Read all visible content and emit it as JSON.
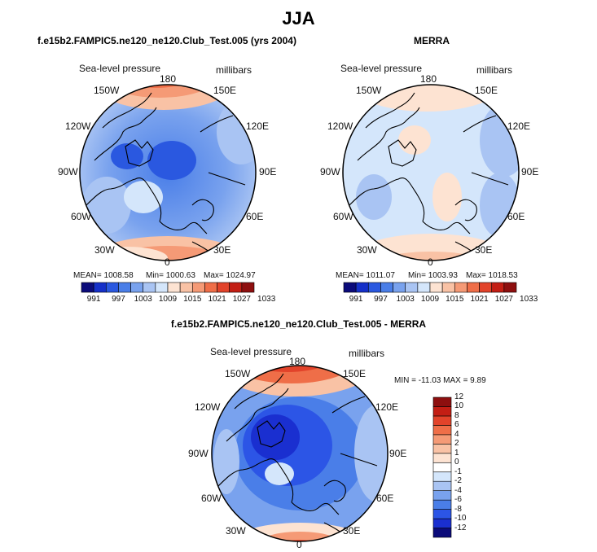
{
  "title": "JJA",
  "panels": [
    {
      "id": "model",
      "title": "f.e15b2.FAMPIC5.ne120_ne120.Club_Test.005 (yrs 2004)",
      "variable": "Sea-level pressure",
      "units": "millibars",
      "stats": {
        "mean": "MEAN= 1008.58",
        "min": "Min= 1000.63",
        "max": "Max= 1024.97"
      }
    },
    {
      "id": "obs",
      "title": "MERRA",
      "variable": "Sea-level pressure",
      "units": "millibars",
      "stats": {
        "mean": "MEAN= 1011.07",
        "min": "Min= 1003.93",
        "max": "Max= 1018.53"
      }
    },
    {
      "id": "diff",
      "title": "f.e15b2.FAMPIC5.ne120_ne120.Club_Test.005 - MERRA",
      "variable": "Sea-level pressure",
      "units": "millibars",
      "stats": {
        "minmax": "MIN = -11.03  MAX =   9.89"
      }
    }
  ],
  "lon_labels": [
    "180",
    "150E",
    "120E",
    "90E",
    "60E",
    "30E",
    "0",
    "30W",
    "60W",
    "90W",
    "120W",
    "150W"
  ],
  "colorbar_abs": {
    "colors": [
      "#0b0b7a",
      "#1530c9",
      "#2a58e0",
      "#4a7ee8",
      "#79a2ee",
      "#a9c4f3",
      "#d4e6fb",
      "#fde3d2",
      "#f9c2a5",
      "#f59a76",
      "#ef6e48",
      "#e2432a",
      "#c31e14",
      "#8e0f0f"
    ],
    "labels": [
      "991",
      "997",
      "1003",
      "1009",
      "1015",
      "1021",
      "1027",
      "1033"
    ]
  },
  "colorbar_diff": {
    "colors": [
      "#0b0b7a",
      "#1a2fd0",
      "#2c55e6",
      "#4a7ee8",
      "#79a2ee",
      "#a9c4f3",
      "#d4e6fb",
      "#ffffff",
      "#fde3d2",
      "#f9c2a5",
      "#f59a76",
      "#ef6e48",
      "#e2432a",
      "#c31e14",
      "#8e0f0f"
    ],
    "labels": [
      "-12",
      "-10",
      "-8",
      "-6",
      "-4",
      "-2",
      "-1",
      "0",
      "1",
      "2",
      "4",
      "6",
      "8",
      "10",
      "12"
    ]
  }
}
